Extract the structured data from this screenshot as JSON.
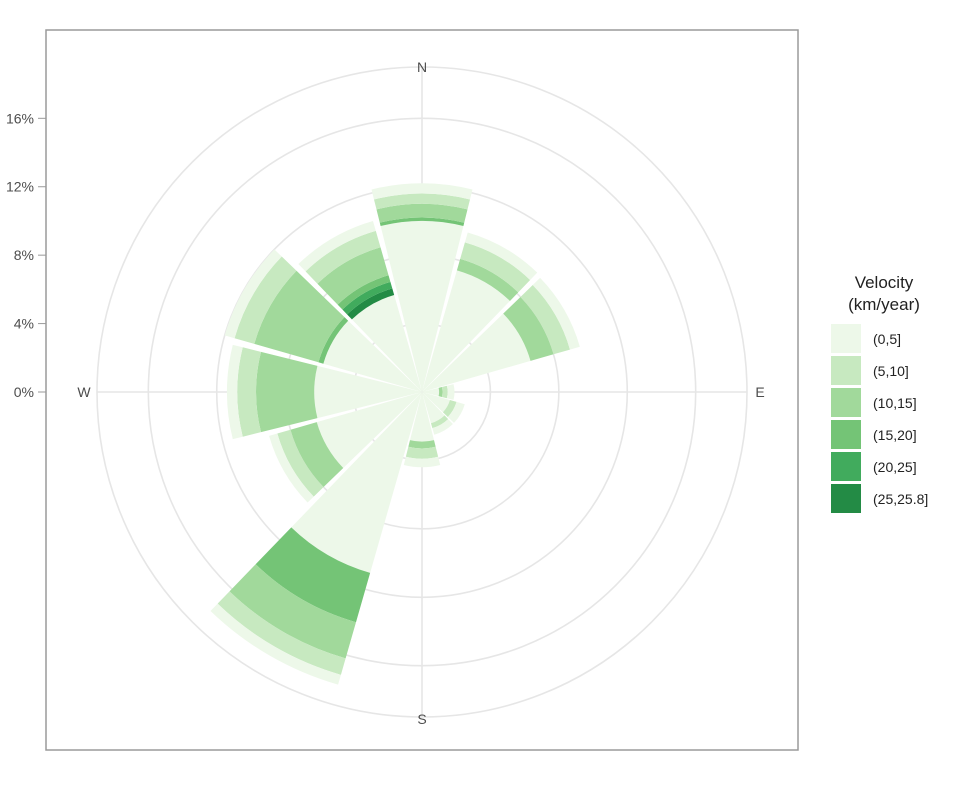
{
  "chart_data": {
    "type": "polar-bar",
    "title": "",
    "radial_axis": {
      "ticks": [
        0,
        4,
        8,
        12,
        16
      ],
      "tick_labels": [
        "0%",
        "4%",
        "8%",
        "12%",
        "16%"
      ],
      "max": 19
    },
    "directions": [
      "N",
      "E",
      "S",
      "W"
    ],
    "legend": {
      "title_line1": "Velocity",
      "title_line2": "(km/year)",
      "position": "right"
    },
    "velocity_classes": [
      {
        "label": "(0,5]",
        "color": "#edf8e9"
      },
      {
        "label": "(5,10]",
        "color": "#c7e9c0"
      },
      {
        "label": "(10,15]",
        "color": "#a1d99b"
      },
      {
        "label": "(15,20]",
        "color": "#74c476"
      },
      {
        "label": "(20,25]",
        "color": "#41ab5d"
      },
      {
        "label": "(25,25.8]",
        "color": "#238b45"
      }
    ],
    "sectors": [
      {
        "bearing": 0,
        "stack": [
          0.6,
          0.6,
          0.8,
          0.2,
          0.0,
          0.0
        ],
        "total": 12.2
      },
      {
        "bearing": 30,
        "stack": [
          0.6,
          1.0,
          0.7,
          0.0,
          0.0,
          0.0
        ],
        "total": 9.7
      },
      {
        "bearing": 60,
        "stack": [
          0.6,
          1.0,
          1.4,
          0.0,
          0.0,
          0.0
        ],
        "total": 9.6
      },
      {
        "bearing": 90,
        "stack": [
          0.4,
          0.3,
          0.2,
          0.0,
          0.0,
          0.0
        ],
        "total": 1.9
      },
      {
        "bearing": 120,
        "stack": [
          0.5,
          0.4,
          0.0,
          0.0,
          0.0,
          0.0
        ],
        "total": 2.6
      },
      {
        "bearing": 150,
        "stack": [
          0.4,
          0.3,
          0.0,
          0.0,
          0.0,
          0.0
        ],
        "total": 2.6
      },
      {
        "bearing": 180,
        "stack": [
          0.5,
          0.6,
          0.4,
          0.0,
          0.0,
          0.0
        ],
        "total": 4.4
      },
      {
        "bearing": 210,
        "stack": [
          0.6,
          1.0,
          2.2,
          3.0,
          0.0,
          0.0
        ],
        "total": 17.8
      },
      {
        "bearing": 240,
        "stack": [
          0.5,
          0.8,
          1.6,
          0.0,
          0.0,
          0.0
        ],
        "total": 9.3
      },
      {
        "bearing": 270,
        "stack": [
          0.6,
          1.1,
          3.4,
          0.0,
          0.0,
          0.0
        ],
        "total": 11.4
      },
      {
        "bearing": 300,
        "stack": [
          0.6,
          1.2,
          3.9,
          0.3,
          0.0,
          0.0
        ],
        "total": 12.0
      },
      {
        "bearing": 330,
        "stack": [
          0.6,
          1.0,
          1.7,
          0.4,
          0.4,
          0.4
        ],
        "total": 10.4
      }
    ]
  }
}
